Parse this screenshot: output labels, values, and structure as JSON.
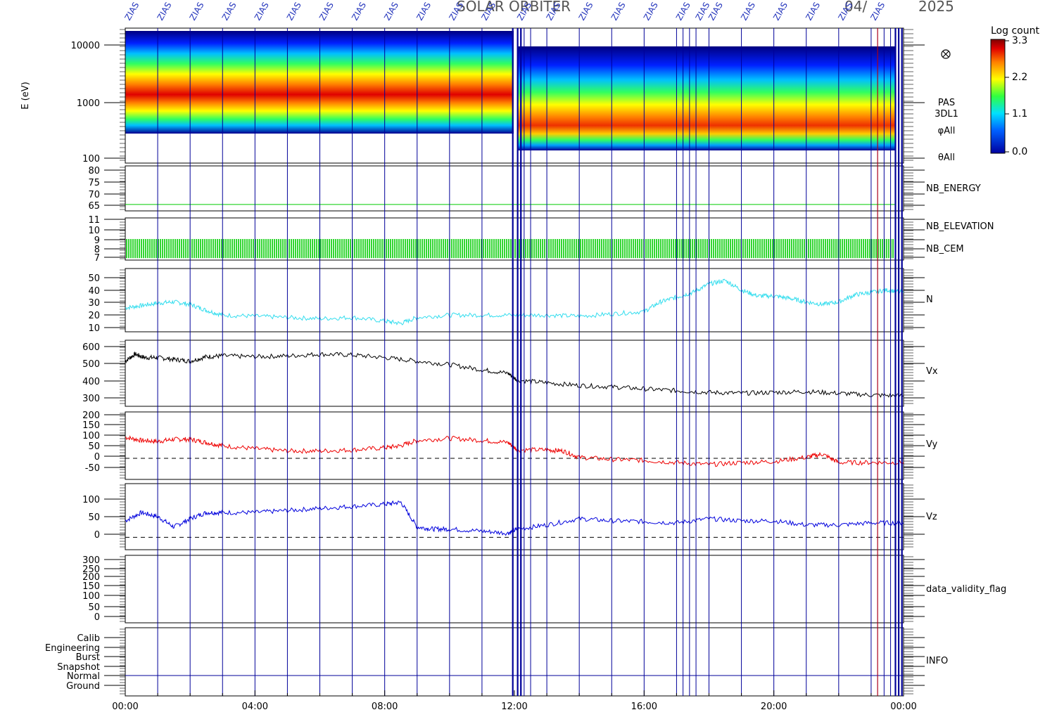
{
  "header": {
    "title": "SOLAR ORBITER",
    "date": "04/",
    "year": "2025",
    "marker_label": "ZIAS"
  },
  "colorbar": {
    "title": "Log count",
    "ticks": [
      "3.3",
      "2.2",
      "1.1",
      "0.0"
    ]
  },
  "chart_data": [
    {
      "type": "heatmap",
      "name": "spectrogram",
      "ylabel": "E (eV)",
      "yscale": "log",
      "yticks": [
        "10000",
        "1000",
        "100"
      ],
      "right_labels": [
        "PAS",
        "3DL1",
        "φAll",
        "θAll"
      ],
      "note": "energy flux peak drifts from ~1800 eV early to ~800 eV late; discontinuity near 12:00"
    },
    {
      "type": "line",
      "name": "NB_ENERGY",
      "label": "NB_ENERGY",
      "color": "#00cc00",
      "yticks": [
        "80",
        "75",
        "70",
        "65"
      ],
      "ylim": [
        61,
        82
      ],
      "x": [
        0,
        24
      ],
      "y": [
        64,
        64
      ]
    },
    {
      "type": "line",
      "name": "NB_ELEVATION / NB_CEM",
      "labels": [
        "NB_ELEVATION",
        "NB_CEM"
      ],
      "colors": [
        "#00cc00",
        "#0000cc"
      ],
      "yticks": [
        "11",
        "10",
        "9",
        "8",
        "7"
      ],
      "ylim": [
        6.8,
        11.2
      ],
      "range": [
        7,
        9
      ]
    },
    {
      "type": "line",
      "name": "N",
      "label": "N",
      "color": "#33ddee",
      "yticks": [
        "50",
        "40",
        "30",
        "20",
        "10"
      ],
      "ylim": [
        5,
        58
      ],
      "x": [
        0,
        0.5,
        1,
        1.5,
        2,
        2.5,
        3,
        4,
        5,
        6,
        7,
        8,
        8.5,
        9,
        10,
        11,
        12,
        13,
        14,
        15,
        16,
        16.5,
        17,
        17.5,
        18,
        18.5,
        19,
        19.5,
        20,
        20.5,
        21,
        21.5,
        22,
        22.5,
        23,
        23.5,
        24
      ],
      "y": [
        25,
        27,
        29,
        30,
        28,
        23,
        19,
        18,
        17,
        16,
        17,
        14,
        12,
        17,
        19,
        19,
        19,
        19,
        18,
        20,
        22,
        30,
        34,
        38,
        45,
        48,
        40,
        35,
        35,
        33,
        30,
        28,
        30,
        36,
        38,
        40,
        38
      ]
    },
    {
      "type": "line",
      "name": "Vx",
      "label": "Vx",
      "color": "#000000",
      "yticks": [
        "600",
        "500",
        "400",
        "300"
      ],
      "ylim": [
        260,
        640
      ],
      "x": [
        0,
        0.3,
        0.6,
        1,
        1.5,
        2,
        2.5,
        3,
        4,
        5,
        6,
        7,
        8,
        9,
        10,
        11,
        11.8,
        12.1,
        13,
        14,
        15,
        16,
        17,
        18,
        19,
        20,
        21,
        22,
        23,
        24
      ],
      "y": [
        520,
        560,
        540,
        540,
        530,
        520,
        545,
        550,
        545,
        550,
        560,
        555,
        540,
        520,
        500,
        470,
        450,
        410,
        395,
        380,
        372,
        360,
        350,
        340,
        335,
        340,
        345,
        335,
        325,
        320
      ]
    },
    {
      "type": "line",
      "name": "Vy",
      "label": "Vy",
      "color": "#ee0000",
      "yticks": [
        "200",
        "150",
        "100",
        "50",
        "0",
        "-50"
      ],
      "ylim": [
        -100,
        220
      ],
      "reference_line": 0,
      "x": [
        0,
        0.5,
        1,
        1.5,
        2,
        2.5,
        3,
        4,
        5,
        6,
        7,
        8,
        8.5,
        9,
        10,
        11,
        11.8,
        12.1,
        13,
        13.5,
        14,
        15,
        16,
        17,
        18,
        19,
        20,
        21,
        21.5,
        22,
        23,
        24
      ],
      "y": [
        100,
        85,
        80,
        90,
        90,
        75,
        60,
        45,
        35,
        35,
        40,
        50,
        60,
        85,
        95,
        85,
        75,
        40,
        40,
        35,
        5,
        -5,
        -10,
        -20,
        -30,
        -20,
        -15,
        5,
        20,
        -20,
        -20,
        -20
      ]
    },
    {
      "type": "line",
      "name": "Vz",
      "label": "Vz",
      "color": "#0000dd",
      "yticks": [
        "100",
        "50",
        "0"
      ],
      "ylim": [
        -30,
        130
      ],
      "reference_line": 0,
      "x": [
        0,
        0.5,
        1,
        1.5,
        2,
        2.5,
        3,
        4,
        5,
        6,
        7,
        8,
        8.5,
        9,
        9.5,
        10,
        11,
        11.8,
        12.1,
        13,
        14,
        15,
        16,
        17,
        18,
        19,
        20,
        21,
        22,
        23,
        24
      ],
      "y": [
        40,
        60,
        50,
        25,
        45,
        60,
        60,
        60,
        65,
        70,
        75,
        80,
        85,
        25,
        20,
        20,
        15,
        10,
        20,
        30,
        45,
        40,
        38,
        35,
        45,
        40,
        40,
        30,
        30,
        35,
        35
      ]
    },
    {
      "type": "line",
      "name": "data_validity_flag",
      "label": "data_validity_flag",
      "yticks": [
        "300",
        "250",
        "200",
        "150",
        "100",
        "50",
        "0"
      ],
      "ylim": [
        -20,
        320
      ],
      "x": [],
      "y": []
    },
    {
      "type": "line",
      "name": "INFO",
      "label": "INFO",
      "categories": [
        "Calib",
        "Engineering",
        "Burst",
        "Snapshot",
        "Normal",
        "Ground"
      ]
    }
  ],
  "time_axis": {
    "labels": [
      "00:00",
      "04:00",
      "08:00",
      "12:00",
      "16:00",
      "20:00",
      "00:00"
    ],
    "label_hours": [
      0,
      4,
      8,
      12,
      16,
      20,
      24
    ]
  },
  "marker_hours": [
    1,
    2,
    3,
    4,
    5,
    6,
    7,
    8,
    9,
    10,
    11,
    11.95,
    12.1,
    12.2,
    12.3,
    12.5,
    13,
    14,
    15,
    16,
    17,
    17.2,
    17.4,
    17.6,
    18,
    19,
    20,
    21,
    22,
    23,
    23.2,
    23.4,
    23.6,
    23.75,
    23.85,
    23.95
  ],
  "colors": {
    "marker": "#000099",
    "axis": "#000000",
    "green": "#00cc00"
  }
}
